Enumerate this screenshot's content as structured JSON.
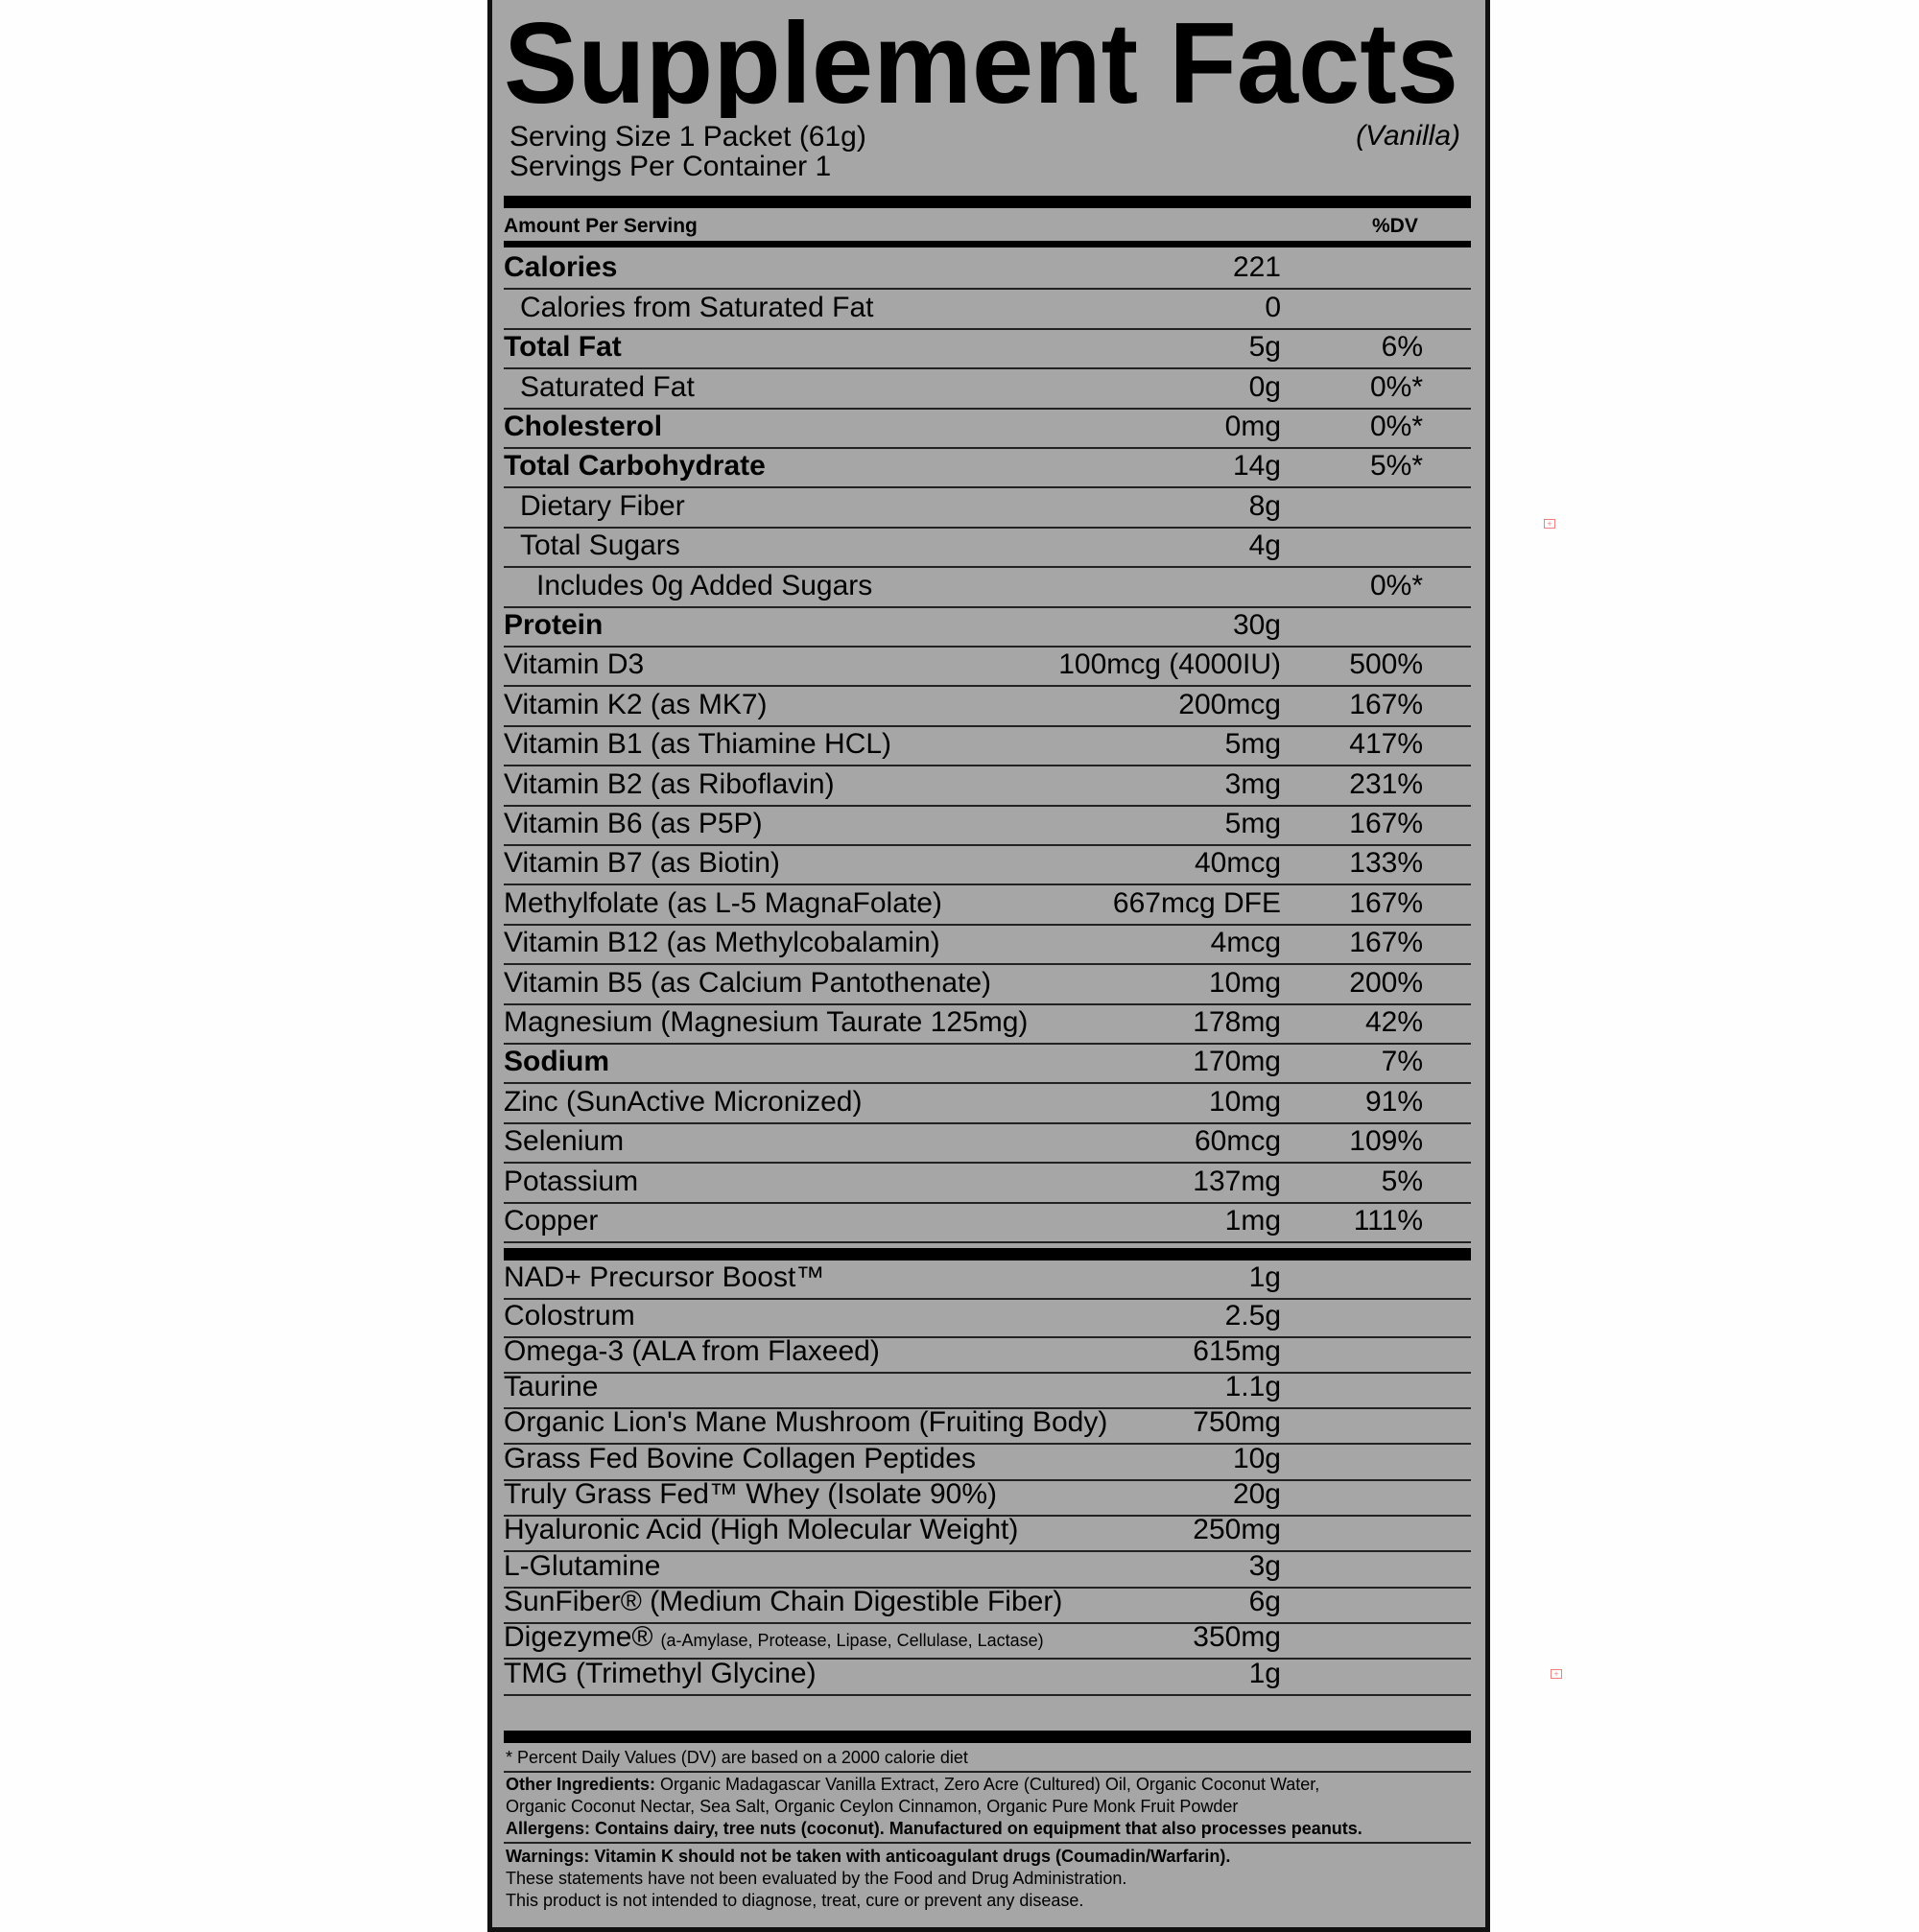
{
  "title": "Supplement Facts",
  "serving_size": "Serving Size 1 Packet (61g)",
  "servings_per_container": "Servings Per Container 1",
  "flavor": "(Vanilla)",
  "header": {
    "amount": "Amount Per Serving",
    "dv": "%DV"
  },
  "nutrients": [
    {
      "label": "Calories",
      "value": "221",
      "dv": "",
      "bold": true,
      "indent": 0
    },
    {
      "label": "Calories from Saturated Fat",
      "value": "0",
      "dv": "",
      "bold": false,
      "indent": 1
    },
    {
      "label": "Total Fat",
      "value": "5g",
      "dv": "6%",
      "bold": true,
      "indent": 0
    },
    {
      "label": "Saturated Fat",
      "value": "0g",
      "dv": "0%*",
      "bold": false,
      "indent": 1
    },
    {
      "label": "Cholesterol",
      "value": "0mg",
      "dv": "0%*",
      "bold": true,
      "indent": 0
    },
    {
      "label": "Total Carbohydrate",
      "value": "14g",
      "dv": "5%*",
      "bold": true,
      "indent": 0
    },
    {
      "label": "Dietary Fiber",
      "value": "8g",
      "dv": "",
      "bold": false,
      "indent": 1
    },
    {
      "label": "Total Sugars",
      "value": "4g",
      "dv": "",
      "bold": false,
      "indent": 1
    },
    {
      "label": "Includes 0g Added Sugars",
      "value": "",
      "dv": "0%*",
      "bold": false,
      "indent": 2
    },
    {
      "label": "Protein",
      "value": "30g",
      "dv": "",
      "bold": true,
      "indent": 0
    },
    {
      "label": "Vitamin D3",
      "value": "100mcg (4000IU)",
      "dv": "500%",
      "bold": false,
      "indent": 0
    },
    {
      "label": "Vitamin K2 (as MK7)",
      "value": "200mcg",
      "dv": "167%",
      "bold": false,
      "indent": 0
    },
    {
      "label": "Vitamin B1 (as Thiamine HCL)",
      "value": "5mg",
      "dv": "417%",
      "bold": false,
      "indent": 0
    },
    {
      "label": "Vitamin B2 (as Riboflavin)",
      "value": "3mg",
      "dv": "231%",
      "bold": false,
      "indent": 0
    },
    {
      "label": "Vitamin B6 (as P5P)",
      "value": "5mg",
      "dv": "167%",
      "bold": false,
      "indent": 0
    },
    {
      "label": "Vitamin B7 (as Biotin)",
      "value": "40mcg",
      "dv": "133%",
      "bold": false,
      "indent": 0
    },
    {
      "label": "Methylfolate (as L-5 MagnaFolate)",
      "value": "667mcg DFE",
      "dv": "167%",
      "bold": false,
      "indent": 0
    },
    {
      "label": "Vitamin B12 (as Methylcobalamin)",
      "value": "4mcg",
      "dv": "167%",
      "bold": false,
      "indent": 0
    },
    {
      "label": "Vitamin B5 (as Calcium Pantothenate)",
      "value": "10mg",
      "dv": "200%",
      "bold": false,
      "indent": 0
    },
    {
      "label": "Magnesium (Magnesium Taurate 125mg)",
      "value": "178mg",
      "dv": "42%",
      "bold": false,
      "indent": 0
    },
    {
      "label": "Sodium",
      "value": "170mg",
      "dv": "7%",
      "bold": true,
      "indent": 0
    },
    {
      "label": "Zinc (SunActive Micronized)",
      "value": "10mg",
      "dv": "91%",
      "bold": false,
      "indent": 0
    },
    {
      "label": "Selenium",
      "value": "60mcg",
      "dv": "109%",
      "bold": false,
      "indent": 0
    },
    {
      "label": "Potassium",
      "value": "137mg",
      "dv": "5%",
      "bold": false,
      "indent": 0
    },
    {
      "label": "Copper",
      "value": "1mg",
      "dv": "111%",
      "bold": false,
      "indent": 0
    }
  ],
  "ingredients": [
    {
      "label": "NAD+ Precursor Boost™",
      "value": "1g"
    },
    {
      "label": "Colostrum",
      "value": "2.5g"
    },
    {
      "label": "Omega-3 (ALA from Flaxeed)",
      "value": "615mg"
    },
    {
      "label": "Taurine",
      "value": "1.1g"
    },
    {
      "label": "Organic Lion's Mane Mushroom (Fruiting Body)",
      "value": "750mg"
    },
    {
      "label": "Grass Fed Bovine Collagen Peptides",
      "value": "10g"
    },
    {
      "label": "Truly Grass Fed™ Whey (Isolate 90%)",
      "value": "20g"
    },
    {
      "label": "Hyaluronic Acid (High Molecular Weight)",
      "value": "250mg"
    },
    {
      "label": "L-Glutamine",
      "value": "3g"
    },
    {
      "label": "SunFiber® (Medium Chain Digestible Fiber)",
      "value": "6g"
    },
    {
      "label": "Digezyme®",
      "sublabel": "(a-Amylase, Protease, Lipase, Cellulase, Lactase)",
      "value": "350mg"
    },
    {
      "label": "TMG (Trimethyl Glycine)",
      "value": "1g"
    }
  ],
  "footer": {
    "dv_note": "* Percent Daily Values (DV) are based on a 2000 calorie diet",
    "other_ingredients_label": "Other Ingredients:",
    "other_ingredients_line1": " Organic Madagascar Vanilla Extract, Zero Acre (Cultured) Oil, Organic Coconut Water,",
    "other_ingredients_line2": "Organic Coconut Nectar, Sea Salt, Organic Ceylon Cinnamon, Organic Pure Monk Fruit Powder",
    "allergens": "Allergens: Contains dairy, tree nuts (coconut). Manufactured on equipment that also processes peanuts.",
    "warnings": "Warnings: Vitamin K should not be taken with anticoagulant drugs (Coumadin/Warfarin).",
    "fda_1": "These statements have not been evaluated by the Food and Drug Administration.",
    "fda_2": "This product is not intended to diagnose, treat, cure or prevent any disease."
  },
  "colors": {
    "panel": "#a6a6a6",
    "ink": "#000000",
    "marker": "#f08080"
  },
  "icons": [
    "expand-marker-icon",
    "expand-marker-icon"
  ]
}
